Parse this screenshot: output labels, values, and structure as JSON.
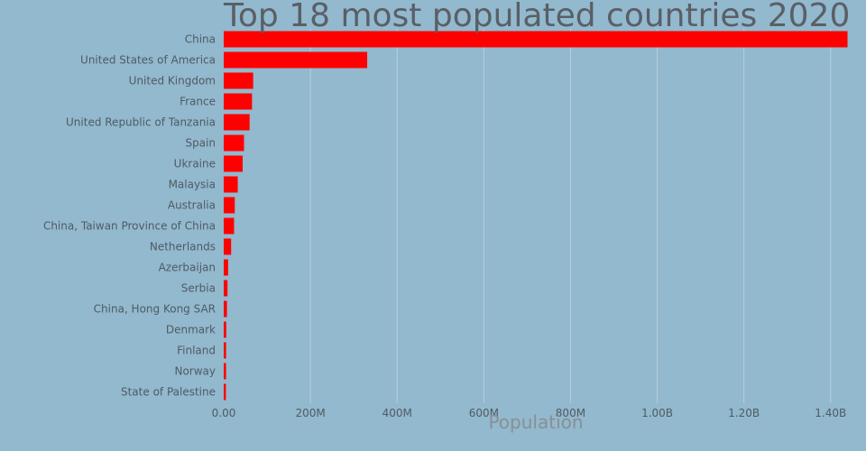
{
  "chart_data": {
    "type": "bar",
    "orientation": "horizontal",
    "title": "Top 18 most populated countries 2020",
    "xlabel": "Population",
    "ylabel": "",
    "xlim": [
      0,
      1440000000
    ],
    "grid": true,
    "bar_color": "#ff0000",
    "categories": [
      "China",
      "United States of America",
      "United Kingdom",
      "France",
      "United Republic of Tanzania",
      "Spain",
      "Ukraine",
      "Malaysia",
      "Australia",
      "China, Taiwan Province of China",
      "Netherlands",
      "Azerbaijan",
      "Serbia",
      "China, Hong Kong SAR",
      "Denmark",
      "Finland",
      "Norway",
      "State of Palestine"
    ],
    "values": [
      1439000000,
      331000000,
      67900000,
      65300000,
      59700000,
      46800000,
      43700000,
      32400000,
      25500000,
      23800000,
      17100000,
      10100000,
      8700000,
      7500000,
      5800000,
      5500000,
      5400000,
      5100000
    ],
    "x_ticks": [
      {
        "value": 0,
        "label": "0.00"
      },
      {
        "value": 200000000,
        "label": "200M"
      },
      {
        "value": 400000000,
        "label": "400M"
      },
      {
        "value": 600000000,
        "label": "600M"
      },
      {
        "value": 800000000,
        "label": "800M"
      },
      {
        "value": 1000000000,
        "label": "1.00B"
      },
      {
        "value": 1200000000,
        "label": "1.20B"
      },
      {
        "value": 1400000000,
        "label": "1.40B"
      }
    ]
  }
}
